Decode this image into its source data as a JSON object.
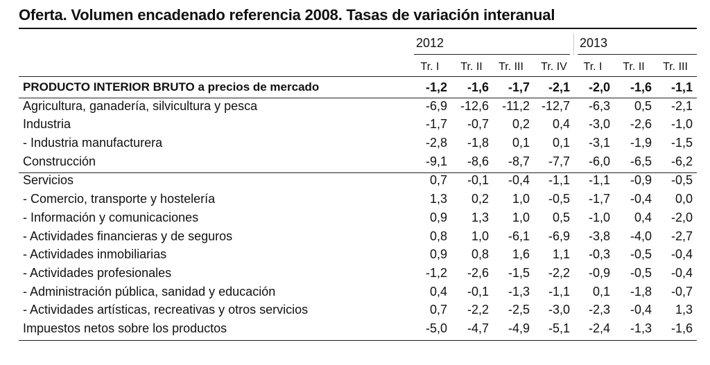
{
  "chart_data": {
    "type": "table",
    "title": "Oferta. Volumen encadenado referencia 2008. Tasas de variación interanual",
    "years": [
      {
        "label": "2012",
        "span": 4
      },
      {
        "label": "2013",
        "span": 3
      }
    ],
    "columns": [
      "Tr. I",
      "Tr. II",
      "Tr. III",
      "Tr. IV",
      "Tr. I",
      "Tr. II",
      "Tr. III"
    ],
    "rows": [
      {
        "label": "PRODUCTO INTERIOR BRUTO a precios de mercado",
        "bold": true,
        "values": [
          "-1,2",
          "-1,6",
          "-1,7",
          "-2,1",
          "-2,0",
          "-1,6",
          "-1,1"
        ]
      },
      {
        "label": "Agricultura, ganadería, silvicultura y pesca",
        "values": [
          "-6,9",
          "-12,6",
          "-11,2",
          "-12,7",
          "-6,3",
          "0,5",
          "-2,1"
        ]
      },
      {
        "label": "Industria",
        "values": [
          "-1,7",
          "-0,7",
          "0,2",
          "0,4",
          "-3,0",
          "-2,6",
          "-1,0"
        ]
      },
      {
        "label": "- Industria manufacturera",
        "values": [
          "-2,8",
          "-1,8",
          "0,1",
          "0,1",
          "-3,1",
          "-1,9",
          "-1,5"
        ]
      },
      {
        "label": "Construcción",
        "values": [
          "-9,1",
          "-8,6",
          "-8,7",
          "-7,7",
          "-6,0",
          "-6,5",
          "-6,2"
        ]
      },
      {
        "label": "Servicios",
        "values": [
          "0,7",
          "-0,1",
          "-0,4",
          "-1,1",
          "-1,1",
          "-0,9",
          "-0,5"
        ]
      },
      {
        "label": "- Comercio, transporte y hostelería",
        "values": [
          "1,3",
          "0,2",
          "1,0",
          "-0,5",
          "-1,7",
          "-0,4",
          "0,0"
        ]
      },
      {
        "label": "- Información y comunicaciones",
        "values": [
          "0,9",
          "1,3",
          "1,0",
          "0,5",
          "-1,0",
          "0,4",
          "-2,0"
        ]
      },
      {
        "label": "- Actividades financieras y de seguros",
        "values": [
          "0,8",
          "1,0",
          "-6,1",
          "-6,9",
          "-3,8",
          "-4,0",
          "-2,7"
        ]
      },
      {
        "label": "- Actividades inmobiliarias",
        "values": [
          "0,9",
          "0,8",
          "1,6",
          "1,1",
          "-0,3",
          "-0,5",
          "-0,4"
        ]
      },
      {
        "label": "- Actividades profesionales",
        "values": [
          "-1,2",
          "-2,6",
          "-1,5",
          "-2,2",
          "-0,9",
          "-0,5",
          "-0,4"
        ]
      },
      {
        "label": "- Administración pública, sanidad y educación",
        "values": [
          "0,4",
          "-0,1",
          "-1,3",
          "-1,1",
          "0,1",
          "-1,8",
          "-0,7"
        ]
      },
      {
        "label": "- Actividades artísticas, recreativas y otros servicios",
        "values": [
          "0,7",
          "-2,2",
          "-2,5",
          "-3,0",
          "-2,3",
          "-0,4",
          "1,3"
        ]
      },
      {
        "label": "Impuestos netos sobre los productos",
        "values": [
          "-5,0",
          "-4,7",
          "-4,9",
          "-5,1",
          "-2,4",
          "-1,3",
          "-1,6"
        ]
      }
    ]
  }
}
